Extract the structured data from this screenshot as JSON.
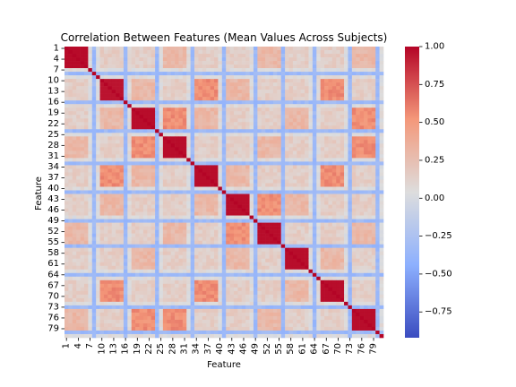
{
  "chart_data": {
    "type": "heatmap",
    "title": "Correlation Between Features (Mean Values Across Subjects)",
    "xlabel": "Feature",
    "ylabel": "Feature",
    "n_features": 81,
    "x_tick_labels": [
      "1",
      "4",
      "7",
      "10",
      "13",
      "16",
      "19",
      "22",
      "25",
      "28",
      "31",
      "34",
      "37",
      "40",
      "43",
      "46",
      "49",
      "52",
      "55",
      "58",
      "61",
      "64",
      "67",
      "70",
      "73",
      "76",
      "79"
    ],
    "y_tick_labels": [
      "1",
      "4",
      "7",
      "10",
      "13",
      "16",
      "19",
      "22",
      "25",
      "28",
      "31",
      "34",
      "37",
      "40",
      "43",
      "46",
      "49",
      "52",
      "55",
      "58",
      "61",
      "64",
      "67",
      "70",
      "73",
      "76",
      "79"
    ],
    "colorbar": {
      "colormap": "coolwarm",
      "vmin": -0.92,
      "vmax": 1.0,
      "tick_values": [
        1.0,
        0.75,
        0.5,
        0.25,
        0.0,
        -0.25,
        -0.5,
        -0.75
      ],
      "tick_labels": [
        "1.00",
        "0.75",
        "0.50",
        "0.25",
        "0.00",
        "−0.25",
        "−0.50",
        "−0.75"
      ]
    },
    "blocks": [
      {
        "features": [
          1,
          6
        ],
        "within_corr": 0.98
      },
      {
        "features": [
          10,
          15
        ],
        "within_corr": 0.95
      },
      {
        "features": [
          18,
          23
        ],
        "within_corr": 0.97
      },
      {
        "features": [
          26,
          31
        ],
        "within_corr": 0.97
      },
      {
        "features": [
          34,
          39
        ],
        "within_corr": 0.97
      },
      {
        "features": [
          42,
          47
        ],
        "within_corr": 0.97
      },
      {
        "features": [
          50,
          55
        ],
        "within_corr": 0.97
      },
      {
        "features": [
          57,
          62
        ],
        "within_corr": 0.97
      },
      {
        "features": [
          66,
          71
        ],
        "within_corr": 0.97
      },
      {
        "features": [
          74,
          79
        ],
        "within_corr": 0.97
      }
    ],
    "colors": {
      "high": "#b40426",
      "neutral": "#dddddd",
      "low": "#3b4cc0"
    }
  }
}
